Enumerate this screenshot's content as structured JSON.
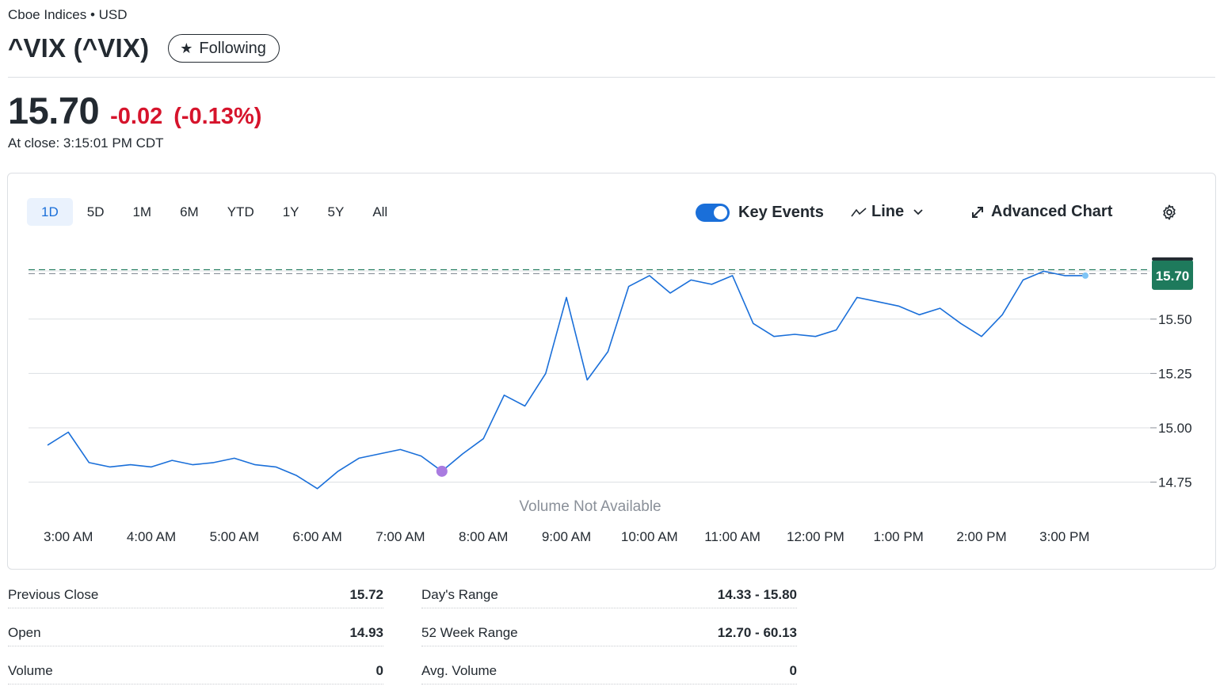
{
  "header": {
    "exchange": "Cboe Indices • USD",
    "ticker": "^VIX (^VIX)",
    "follow_label": "Following",
    "price": "15.70",
    "change": "-0.02",
    "change_pct": "(-0.13%)",
    "close_time": "At close: 3:15:01 PM CDT"
  },
  "chart_controls": {
    "ranges": [
      "1D",
      "5D",
      "1M",
      "6M",
      "YTD",
      "1Y",
      "5Y",
      "All"
    ],
    "active_range": "1D",
    "key_events_label": "Key Events",
    "key_events_on": true,
    "chart_type_label": "Line",
    "advanced_label": "Advanced Chart"
  },
  "chart_data": {
    "type": "line",
    "x": [
      "2:45 AM",
      "3:00 AM",
      "3:15 AM",
      "3:30 AM",
      "3:45 AM",
      "4:00 AM",
      "4:15 AM",
      "4:30 AM",
      "4:45 AM",
      "5:00 AM",
      "5:15 AM",
      "5:30 AM",
      "5:45 AM",
      "6:00 AM",
      "6:15 AM",
      "6:30 AM",
      "6:45 AM",
      "7:00 AM",
      "7:15 AM",
      "7:30 AM",
      "7:45 AM",
      "8:00 AM",
      "8:15 AM",
      "8:30 AM",
      "8:45 AM",
      "9:00 AM",
      "9:15 AM",
      "9:30 AM",
      "9:45 AM",
      "10:00 AM",
      "10:15 AM",
      "10:30 AM",
      "10:45 AM",
      "11:00 AM",
      "11:15 AM",
      "11:30 AM",
      "11:45 AM",
      "12:00 PM",
      "12:15 PM",
      "12:30 PM",
      "12:45 PM",
      "1:00 PM",
      "1:15 PM",
      "1:30 PM",
      "1:45 PM",
      "2:00 PM",
      "2:15 PM",
      "2:30 PM",
      "2:45 PM",
      "3:00 PM",
      "3:15 PM"
    ],
    "values": [
      14.92,
      14.98,
      14.84,
      14.82,
      14.83,
      14.82,
      14.85,
      14.83,
      14.84,
      14.86,
      14.83,
      14.82,
      14.78,
      14.72,
      14.8,
      14.86,
      14.88,
      14.9,
      14.87,
      14.8,
      14.88,
      14.95,
      15.15,
      15.1,
      15.25,
      15.6,
      15.22,
      15.35,
      15.65,
      15.7,
      15.62,
      15.68,
      15.66,
      15.7,
      15.48,
      15.42,
      15.43,
      15.42,
      15.45,
      15.6,
      15.58,
      15.56,
      15.52,
      15.55,
      15.48,
      15.42,
      15.52,
      15.68,
      15.72,
      15.7,
      15.7
    ],
    "reference_line": 15.72,
    "current_price_label": "15.70",
    "y_ticks": [
      "15.50",
      "15.25",
      "15.00",
      "14.75"
    ],
    "ylim": [
      14.65,
      15.82
    ],
    "x_tick_labels": [
      "3:00 AM",
      "4:00 AM",
      "5:00 AM",
      "6:00 AM",
      "7:00 AM",
      "8:00 AM",
      "9:00 AM",
      "10:00 AM",
      "11:00 AM",
      "12:00 PM",
      "1:00 PM",
      "2:00 PM",
      "3:00 PM"
    ],
    "key_event_time": "7:30 AM",
    "volume_note": "Volume Not Available",
    "line_color": "#1a6fd9",
    "reference_color": "#1e7a5c",
    "key_event_color": "#a97be0"
  },
  "stats": {
    "left": [
      {
        "label": "Previous Close",
        "value": "15.72"
      },
      {
        "label": "Open",
        "value": "14.93"
      },
      {
        "label": "Volume",
        "value": "0"
      }
    ],
    "right": [
      {
        "label": "Day's Range",
        "value": "14.33 - 15.80"
      },
      {
        "label": "52 Week Range",
        "value": "12.70 - 60.13"
      },
      {
        "label": "Avg. Volume",
        "value": "0"
      }
    ]
  }
}
